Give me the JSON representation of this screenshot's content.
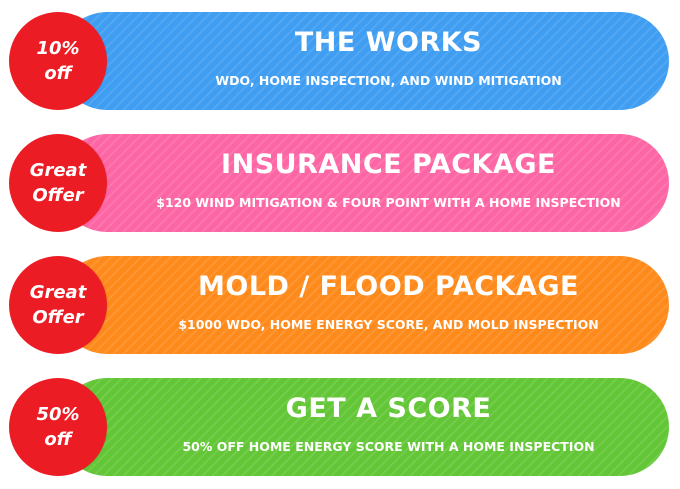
{
  "colors": {
    "badge": "#ec1c24",
    "works": "#3f9df2",
    "insurance": "#fd66a4",
    "mold": "#fe8a1c",
    "score": "#63c637"
  },
  "packages": [
    {
      "badge_line1": "10%",
      "badge_line2": "off",
      "title": "THE WORKS",
      "subtitle": "WDO, HOME INSPECTION, AND WIND MITIGATION"
    },
    {
      "badge_line1": "Great",
      "badge_line2": "Offer",
      "title": "INSURANCE PACKAGE",
      "subtitle": "$120 WIND MITIGATION & FOUR POINT WITH A HOME INSPECTION"
    },
    {
      "badge_line1": "Great",
      "badge_line2": "Offer",
      "title": "MOLD / FLOOD PACKAGE",
      "subtitle": "$1000 WDO, HOME ENERGY SCORE, AND MOLD INSPECTION"
    },
    {
      "badge_line1": "50%",
      "badge_line2": "off",
      "title": "GET A SCORE",
      "subtitle": "50% OFF HOME ENERGY SCORE WITH A HOME INSPECTION"
    }
  ]
}
